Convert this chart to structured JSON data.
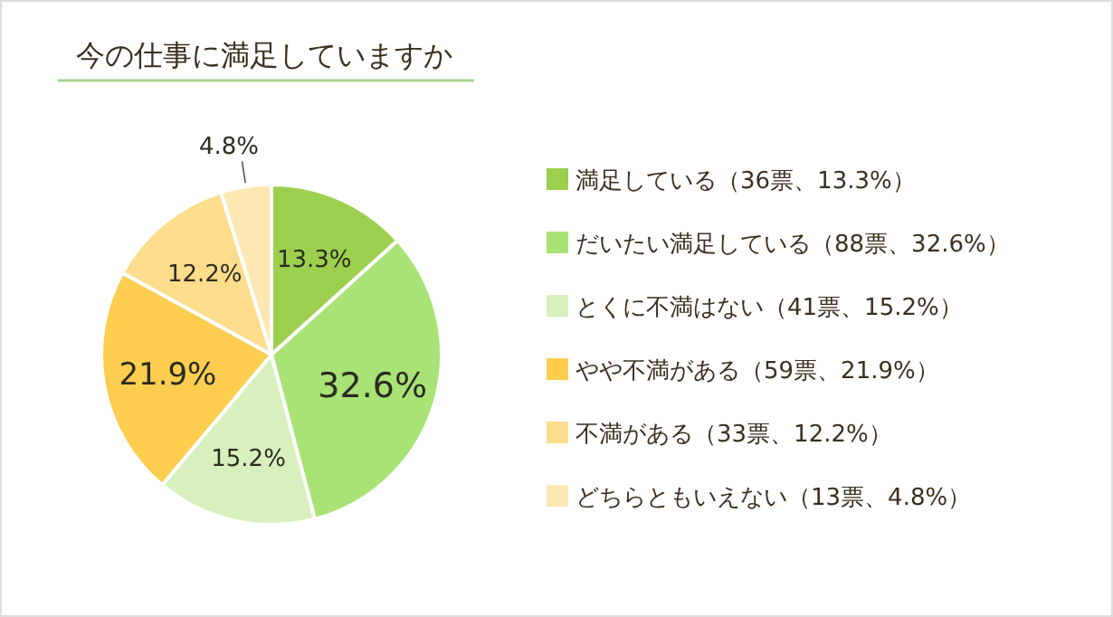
{
  "chart_data": {
    "type": "pie",
    "title": "今の仕事に満足していますか",
    "categories": [
      "満足している（36票、13.3%）",
      "だいたい満足している（88票、32.6%）",
      "とくに不満はない（41票、15.2%）",
      "やや不満がある（59票、21.9%）",
      "不満がある（33票、12.2%）",
      "どちらともいえない（13票、4.8%）"
    ],
    "values": [
      13.3,
      32.6,
      15.2,
      21.9,
      12.2,
      4.8
    ],
    "colors": [
      "#9ccf4e",
      "#a9e275",
      "#d8f0bd",
      "#fccd4e",
      "#fddc8c",
      "#fde8b3"
    ],
    "value_labels": [
      "13.3%",
      "32.6%",
      "15.2%",
      "21.9%",
      "12.2%",
      "4.8%"
    ],
    "legend": "right"
  }
}
